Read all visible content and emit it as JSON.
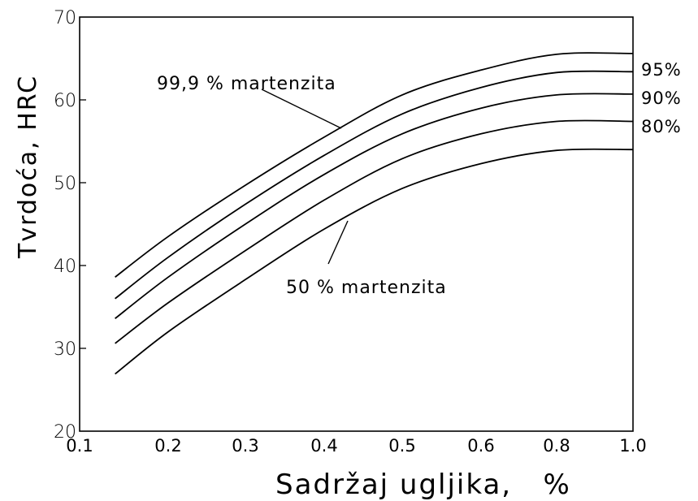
{
  "chart_data": {
    "type": "line",
    "title": "",
    "xlabel": "Sadržaj ugljika,   %",
    "ylabel": "Tvrdoća, HRC",
    "x_tick_labels": [
      "0.1",
      "0.2",
      "0.3",
      "0.4",
      "0.5",
      "0.6",
      "0.8",
      "1.0"
    ],
    "y_ticks": [
      20,
      30,
      40,
      50,
      60,
      70
    ],
    "y_tick_labels": [
      "20",
      "30",
      "40",
      "50",
      "60",
      "70"
    ],
    "ylim": [
      20,
      70
    ],
    "x_scale": "ordinal-spaced ticks",
    "grid": false,
    "annotations": {
      "top": "99,9 % martenzita",
      "bottom": "50 % martenzita"
    },
    "series": [
      {
        "name": "99,9 % martenzita",
        "x": [
          0.14,
          0.2,
          0.3,
          0.4,
          0.5,
          0.6,
          0.8,
          1.0
        ],
        "y": [
          38.6,
          43.5,
          49.7,
          55.5,
          60.6,
          63.6,
          65.5,
          65.6
        ]
      },
      {
        "name": "95%",
        "x": [
          0.14,
          0.2,
          0.3,
          0.4,
          0.5,
          0.6,
          0.8,
          1.0
        ],
        "y": [
          36.0,
          41.0,
          47.4,
          53.3,
          58.3,
          61.5,
          63.3,
          63.4
        ]
      },
      {
        "name": "90%",
        "x": [
          0.14,
          0.2,
          0.3,
          0.4,
          0.5,
          0.6,
          0.8,
          1.0
        ],
        "y": [
          33.6,
          38.6,
          45.0,
          51.0,
          55.9,
          59.0,
          60.6,
          60.7
        ]
      },
      {
        "name": "80%",
        "x": [
          0.14,
          0.2,
          0.3,
          0.4,
          0.5,
          0.6,
          0.8,
          1.0
        ],
        "y": [
          30.6,
          35.5,
          41.8,
          47.9,
          52.9,
          55.9,
          57.4,
          57.4
        ]
      },
      {
        "name": "50 % martenzita",
        "x": [
          0.14,
          0.2,
          0.3,
          0.4,
          0.5,
          0.6,
          0.8,
          1.0
        ],
        "y": [
          26.9,
          32.0,
          38.3,
          44.4,
          49.3,
          52.3,
          53.9,
          54.0
        ]
      }
    ],
    "end_labels": [
      "95%",
      "90%",
      "80%"
    ]
  }
}
